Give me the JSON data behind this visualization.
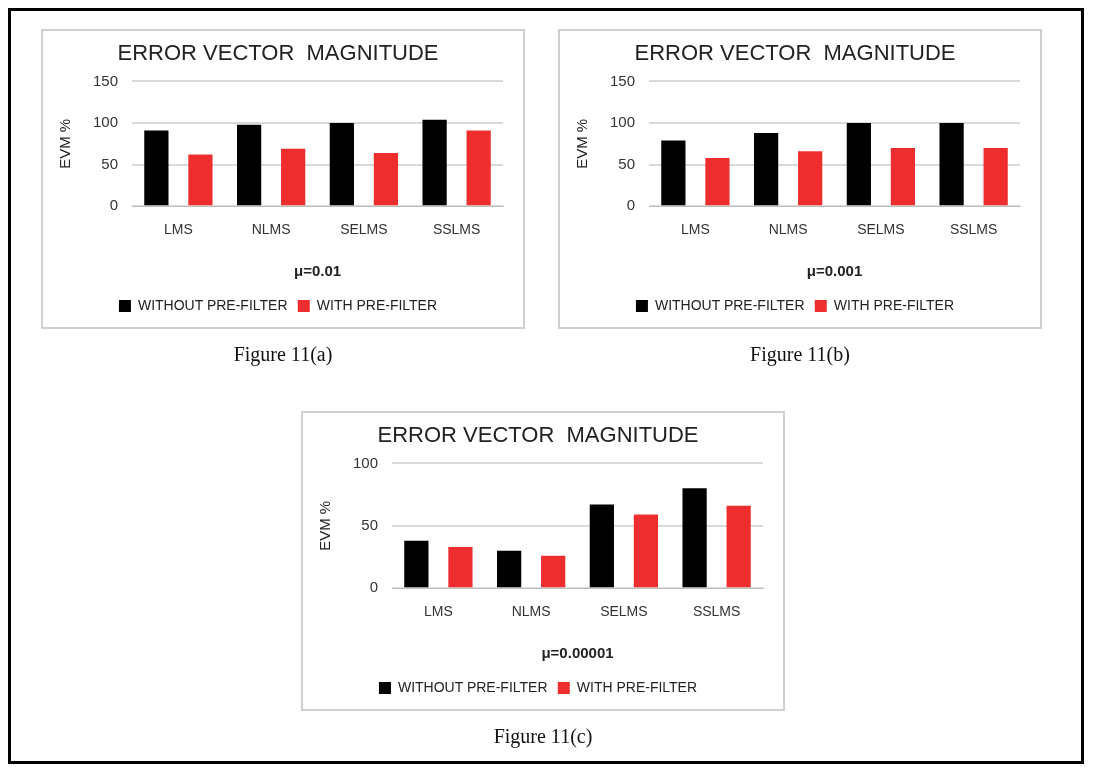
{
  "chart_data": [
    {
      "type": "bar",
      "title": "ERROR VECTOR  MAGNITUDE",
      "xlabel": "μ=0.01",
      "ylabel": "EVM %",
      "categories": [
        "LMS",
        "NLMS",
        "SELMS",
        "SSLMS"
      ],
      "series": [
        {
          "name": "WITHOUT PRE-FILTER",
          "color": "#000000",
          "values": [
            91,
            98,
            100,
            104
          ]
        },
        {
          "name": "WITH PRE-FILTER",
          "color": "#ee2e2e",
          "values": [
            62,
            69,
            64,
            91
          ]
        }
      ],
      "ylim": [
        0,
        150
      ],
      "yticks": [
        0,
        50,
        100,
        150
      ],
      "grid": "y",
      "legend": "bottom",
      "annotations": [
        "Figure 11(a)"
      ]
    },
    {
      "type": "bar",
      "title": "ERROR VECTOR  MAGNITUDE",
      "xlabel": "μ=0.001",
      "ylabel": "EVM %",
      "categories": [
        "LMS",
        "NLMS",
        "SELMS",
        "SSLMS"
      ],
      "series": [
        {
          "name": "WITHOUT PRE-FILTER",
          "color": "#000000",
          "values": [
            79,
            88,
            100,
            100
          ]
        },
        {
          "name": "WITH PRE-FILTER",
          "color": "#ee2e2e",
          "values": [
            58,
            66,
            70,
            70
          ]
        }
      ],
      "ylim": [
        0,
        150
      ],
      "yticks": [
        0,
        50,
        100,
        150
      ],
      "grid": "y",
      "legend": "bottom",
      "annotations": [
        "Figure 11(b)"
      ]
    },
    {
      "type": "bar",
      "title": "ERROR VECTOR  MAGNITUDE",
      "xlabel": "μ=0.00001",
      "ylabel": "EVM %",
      "categories": [
        "LMS",
        "NLMS",
        "SELMS",
        "SSLMS"
      ],
      "series": [
        {
          "name": "WITHOUT PRE-FILTER",
          "color": "#000000",
          "values": [
            38,
            30,
            67,
            80
          ]
        },
        {
          "name": "WITH PRE-FILTER",
          "color": "#ee2e2e",
          "values": [
            33,
            26,
            59,
            66
          ]
        }
      ],
      "ylim": [
        0,
        100
      ],
      "yticks": [
        0,
        50,
        100
      ],
      "grid": "y",
      "legend": "bottom",
      "annotations": [
        "Figure 11(c)"
      ]
    }
  ]
}
